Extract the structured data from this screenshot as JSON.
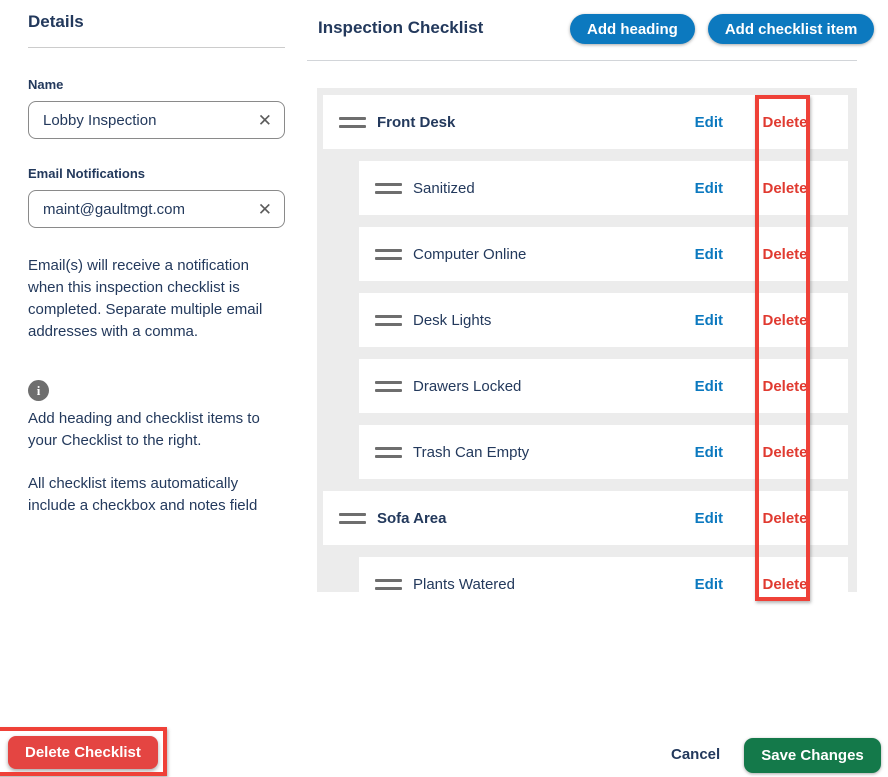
{
  "details_panel": {
    "title": "Details",
    "name_label": "Name",
    "name_value": "Lobby Inspection",
    "email_label": "Email Notifications",
    "email_value": "maint@gaultmgt.com",
    "email_help": "Email(s) will receive a notification when this inspection checklist is completed. Separate multiple email addresses with a comma.",
    "help_1": "Add heading and checklist items to your Checklist to the right.",
    "help_2": "All checklist items automatically include a checkbox and notes field",
    "info_icon_glyph": "i"
  },
  "checklist_panel": {
    "title": "Inspection Checklist",
    "add_heading_label": "Add heading",
    "add_item_label": "Add checklist item",
    "edit_label": "Edit",
    "delete_label": "Delete",
    "rows": [
      {
        "label": "Front Desk",
        "type": "heading"
      },
      {
        "label": "Sanitized",
        "type": "item"
      },
      {
        "label": "Computer Online",
        "type": "item"
      },
      {
        "label": "Desk Lights",
        "type": "item"
      },
      {
        "label": "Drawers Locked",
        "type": "item"
      },
      {
        "label": "Trash Can Empty",
        "type": "item"
      },
      {
        "label": "Sofa Area",
        "type": "heading"
      },
      {
        "label": "Plants Watered",
        "type": "item"
      }
    ]
  },
  "footer": {
    "delete_checklist_label": "Delete Checklist",
    "cancel_label": "Cancel",
    "save_label": "Save Changes"
  },
  "colors": {
    "navy": "#23395c",
    "blue": "#0c79bf",
    "red": "#e03a30",
    "button_red": "#e44542",
    "annotation_red": "#ef4138",
    "green": "#14794a"
  }
}
